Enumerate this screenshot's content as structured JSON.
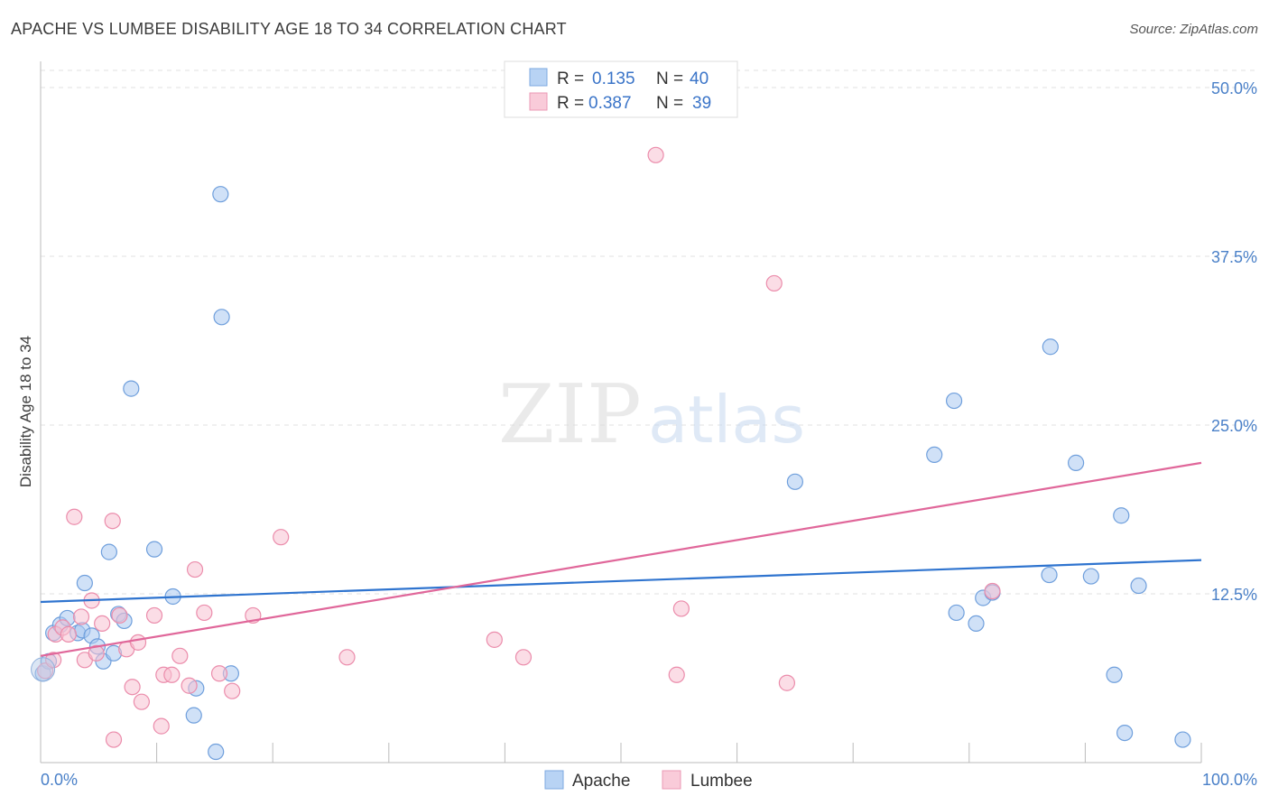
{
  "header": {
    "title": "APACHE VS LUMBEE DISABILITY AGE 18 TO 34 CORRELATION CHART",
    "source": "Source: ZipAtlas.com"
  },
  "watermark": {
    "zip": "ZIP",
    "atlas": "atlas"
  },
  "legend": {
    "rows": [
      {
        "r_label": "R =",
        "r_value": "0.135",
        "n_label": "N =",
        "n_value": "40"
      },
      {
        "r_label": "R =",
        "r_value": "0.387",
        "n_label": "N =",
        "n_value": "39"
      }
    ]
  },
  "chart_data": {
    "type": "scatter",
    "title": "APACHE VS LUMBEE DISABILITY AGE 18 TO 34 CORRELATION CHART",
    "ylabel": "Disability Age 18 to 34",
    "xlabel": "",
    "xlim": [
      0,
      100
    ],
    "ylim": [
      0,
      50
    ],
    "x_tick_labels": [
      {
        "value": 0,
        "label": "0.0%"
      },
      {
        "value": 100,
        "label": "100.0%"
      }
    ],
    "y_tick_labels": [
      {
        "value": 12.5,
        "label": "12.5%"
      },
      {
        "value": 25,
        "label": "25.0%"
      },
      {
        "value": 37.5,
        "label": "37.5%"
      },
      {
        "value": 50,
        "label": "50.0%"
      }
    ],
    "grid": true,
    "legend_position": "top-center",
    "series": [
      {
        "name": "Apache",
        "color": "#a9c8f0",
        "stroke": "#6f9fdc",
        "line_color": "#2f74cf",
        "trend": {
          "x": [
            0,
            100
          ],
          "y": [
            11.9,
            15.0
          ]
        },
        "points": [
          [
            0.2,
            6.6
          ],
          [
            0.7,
            7.5
          ],
          [
            1.1,
            9.6
          ],
          [
            1.7,
            10.2
          ],
          [
            2.3,
            10.7
          ],
          [
            3.2,
            9.6
          ],
          [
            3.6,
            9.8
          ],
          [
            3.8,
            13.3
          ],
          [
            4.4,
            9.4
          ],
          [
            4.9,
            8.6
          ],
          [
            5.4,
            7.5
          ],
          [
            5.9,
            15.6
          ],
          [
            6.3,
            8.1
          ],
          [
            6.7,
            11.0
          ],
          [
            7.2,
            10.5
          ],
          [
            7.8,
            27.7
          ],
          [
            9.8,
            15.8
          ],
          [
            11.4,
            12.3
          ],
          [
            13.2,
            3.5
          ],
          [
            13.4,
            5.5
          ],
          [
            15.1,
            0.8
          ],
          [
            15.5,
            42.1
          ],
          [
            15.6,
            33.0
          ],
          [
            16.4,
            6.6
          ],
          [
            65.0,
            20.8
          ],
          [
            77.0,
            22.8
          ],
          [
            78.7,
            26.8
          ],
          [
            78.9,
            11.1
          ],
          [
            80.6,
            10.3
          ],
          [
            81.2,
            12.2
          ],
          [
            82.0,
            12.6
          ],
          [
            86.9,
            13.9
          ],
          [
            87.0,
            30.8
          ],
          [
            89.2,
            22.2
          ],
          [
            90.5,
            13.8
          ],
          [
            92.5,
            6.5
          ],
          [
            93.1,
            18.3
          ],
          [
            93.4,
            2.2
          ],
          [
            94.6,
            13.1
          ],
          [
            98.4,
            1.7
          ]
        ]
      },
      {
        "name": "Lumbee",
        "color": "#f7c1d2",
        "stroke": "#eb8cab",
        "line_color": "#e0679a",
        "trend": {
          "x": [
            0,
            100
          ],
          "y": [
            7.9,
            22.2
          ]
        },
        "points": [
          [
            0.4,
            6.8
          ],
          [
            1.1,
            7.6
          ],
          [
            1.3,
            9.5
          ],
          [
            1.9,
            10.0
          ],
          [
            2.4,
            9.5
          ],
          [
            2.9,
            18.2
          ],
          [
            3.5,
            10.8
          ],
          [
            3.8,
            7.6
          ],
          [
            4.4,
            12.0
          ],
          [
            4.8,
            8.1
          ],
          [
            5.3,
            10.3
          ],
          [
            6.2,
            17.9
          ],
          [
            6.3,
            1.7
          ],
          [
            6.8,
            10.9
          ],
          [
            7.4,
            8.4
          ],
          [
            7.9,
            5.6
          ],
          [
            8.4,
            8.9
          ],
          [
            8.7,
            4.5
          ],
          [
            9.8,
            10.9
          ],
          [
            10.4,
            2.7
          ],
          [
            10.6,
            6.5
          ],
          [
            11.3,
            6.5
          ],
          [
            12.0,
            7.9
          ],
          [
            12.8,
            5.7
          ],
          [
            13.3,
            14.3
          ],
          [
            14.1,
            11.1
          ],
          [
            15.4,
            6.6
          ],
          [
            16.5,
            5.3
          ],
          [
            18.3,
            10.9
          ],
          [
            20.7,
            16.7
          ],
          [
            26.4,
            7.8
          ],
          [
            39.1,
            9.1
          ],
          [
            41.6,
            7.8
          ],
          [
            53.0,
            45.0
          ],
          [
            54.8,
            6.5
          ],
          [
            55.2,
            11.4
          ],
          [
            63.2,
            35.5
          ],
          [
            64.3,
            5.9
          ],
          [
            82.0,
            12.7
          ]
        ]
      }
    ]
  }
}
